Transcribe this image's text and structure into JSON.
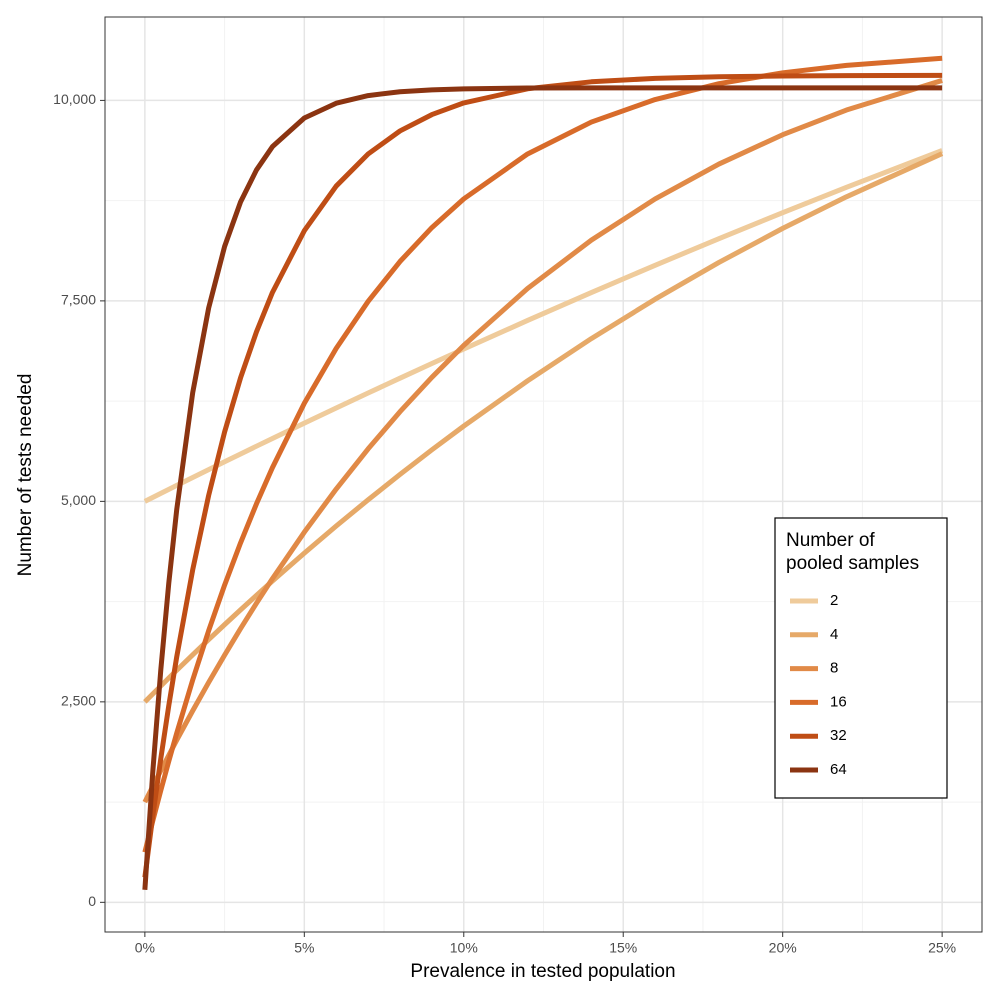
{
  "chart_data": {
    "type": "line",
    "x_label": "Prevalence in tested population",
    "y_label": "Number of tests needed",
    "legend_title": [
      "Number of",
      "pooled samples"
    ],
    "legend_position": "right",
    "grid": true,
    "x": [
      0,
      0.25,
      0.5,
      0.75,
      1,
      1.5,
      2,
      2.5,
      3,
      3.5,
      4,
      5,
      6,
      7,
      8,
      9,
      10,
      12,
      14,
      16,
      18,
      20,
      22,
      25
    ],
    "series": [
      {
        "name": "2",
        "color": "#efcb9b",
        "values": [
          5000,
          5050,
          5100,
          5149,
          5199,
          5298,
          5396,
          5494,
          5591,
          5688,
          5784,
          5975,
          6164,
          6351,
          6536,
          6719,
          6900,
          7256,
          7604,
          7944,
          8276,
          8600,
          8916,
          9375
        ]
      },
      {
        "name": "4",
        "color": "#e6a968",
        "values": [
          2500,
          2600,
          2698,
          2797,
          2894,
          3087,
          3276,
          3463,
          3647,
          3828,
          4007,
          4355,
          4693,
          5019,
          5336,
          5643,
          5939,
          6503,
          7030,
          7521,
          7979,
          8404,
          8798,
          9336
        ]
      },
      {
        "name": "8",
        "color": "#e18a47",
        "values": [
          1250,
          1448,
          1643,
          1834,
          2023,
          2389,
          2742,
          3083,
          3413,
          3730,
          4036,
          4616,
          5154,
          5654,
          6118,
          6547,
          6945,
          7654,
          8258,
          8771,
          9206,
          9572,
          9880,
          10249
        ]
      },
      {
        "name": "16",
        "color": "#d86b2a",
        "values": [
          625,
          1018,
          1396,
          1760,
          2110,
          2773,
          3387,
          3956,
          4482,
          4970,
          5421,
          6224,
          6908,
          7493,
          7991,
          8414,
          8772,
          9332,
          9730,
          10011,
          10208,
          10344,
          10437,
          10525
        ]
      },
      {
        "name": "32",
        "color": "#bf4d15",
        "values": [
          312.5,
          1082,
          1794,
          2453,
          3063,
          4147,
          5074,
          5865,
          6540,
          7115,
          7605,
          8375,
          8932,
          9332,
          9619,
          9823,
          9969,
          10145,
          10232,
          10275,
          10295,
          10304,
          10309,
          10312
        ]
      },
      {
        "name": "64",
        "color": "#8b3411",
        "values": [
          156,
          1637,
          2901,
          3980,
          4900,
          6355,
          7411,
          8178,
          8733,
          9133,
          9423,
          9781,
          9965,
          10060,
          10108,
          10132,
          10144,
          10155,
          10156,
          10156,
          10156,
          10156,
          10156,
          10156
        ]
      }
    ],
    "xlim": [
      -1.25,
      26.25
    ],
    "xticks": [
      {
        "value": 0,
        "label": "0%"
      },
      {
        "value": 5,
        "label": "5%"
      },
      {
        "value": 10,
        "label": "10%"
      },
      {
        "value": 15,
        "label": "15%"
      },
      {
        "value": 20,
        "label": "20%"
      },
      {
        "value": 25,
        "label": "25%"
      }
    ],
    "ylim": [
      -370,
      11040
    ],
    "yticks": [
      0,
      {
        "value": 2500,
        "label": "2,500"
      },
      {
        "value": 5000,
        "label": "5,000"
      },
      {
        "value": 7500,
        "label": "7,500"
      },
      {
        "value": 10000,
        "label": "10,000"
      }
    ]
  }
}
